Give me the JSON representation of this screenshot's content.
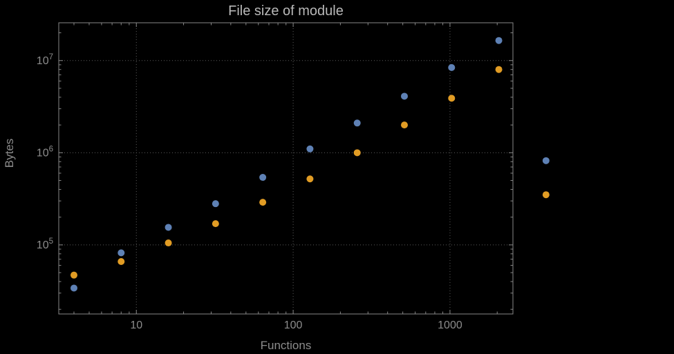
{
  "chart_data": {
    "type": "scatter",
    "title": "File size of module",
    "xlabel": "Functions",
    "ylabel": "Bytes",
    "x_scale": "log",
    "y_scale": "log",
    "x": [
      4,
      8,
      16,
      32,
      64,
      128,
      256,
      512,
      1024,
      2048,
      4096
    ],
    "series": [
      {
        "name": "blue",
        "color": "#5E81B5",
        "values": [
          34000,
          82000,
          155000,
          280000,
          540000,
          1100000,
          2100000,
          4100000,
          8400000,
          16500000,
          820000
        ]
      },
      {
        "name": "orange",
        "color": "#E19C24",
        "values": [
          47000,
          66000,
          105000,
          170000,
          290000,
          520000,
          1000000,
          2000000,
          3900000,
          8000000,
          350000
        ]
      }
    ],
    "x_ticks": [
      10,
      100,
      1000
    ],
    "y_tick_exponents": [
      5,
      6,
      7
    ],
    "x_range": [
      3.2,
      2520
    ],
    "y_range": [
      17800,
      25700000
    ],
    "grid": "dotted",
    "legend": "none",
    "marker": "disk",
    "colors": {
      "background": "#000000",
      "frame": "#898989",
      "grid": "#5e5e5e",
      "labels": "#8c8c8c",
      "title": "#b9b9b9"
    }
  }
}
